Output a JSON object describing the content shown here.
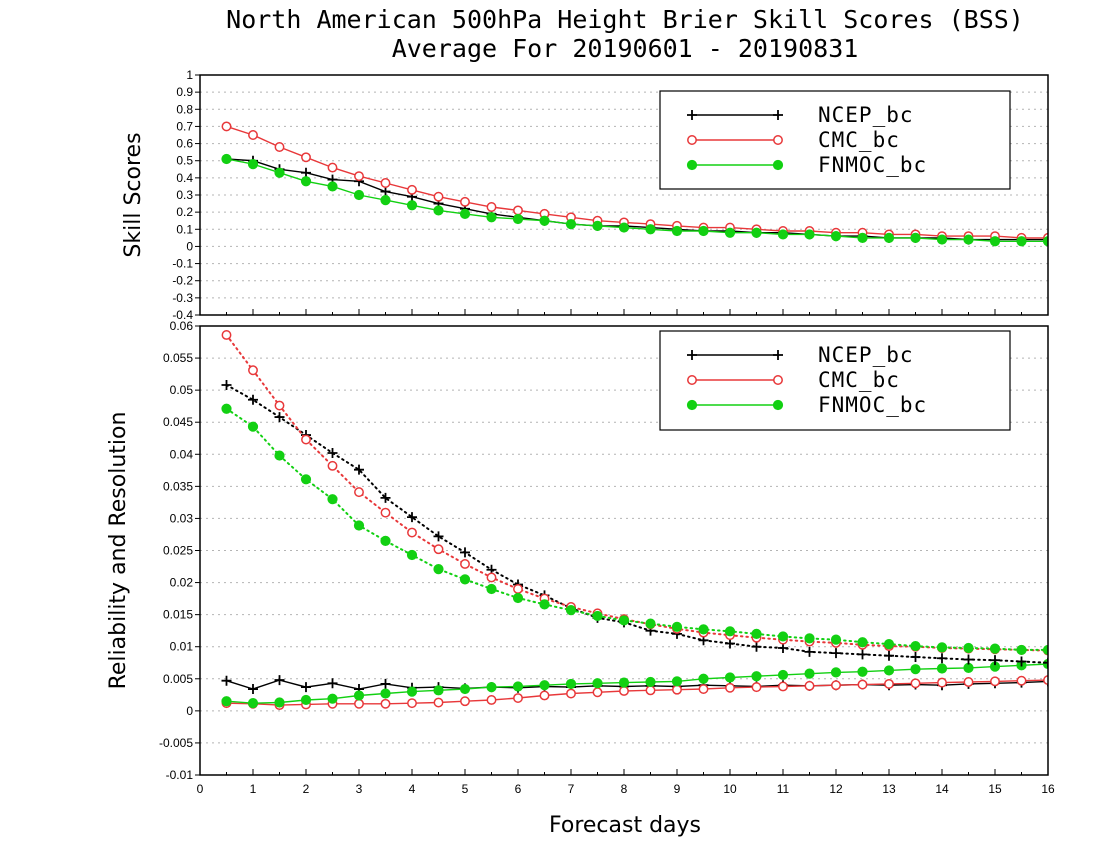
{
  "title": "North American 500hPa Height Brier Skill Scores (BSS)",
  "subtitle": "Average For 20190601 - 20190831",
  "xlabel": "Forecast days",
  "colors": {
    "NCEP_bc": "#000000",
    "CMC_bc": "#e8383a",
    "FNMOC_bc": "#12d012"
  },
  "chart_data": [
    {
      "type": "line",
      "ylabel": "Skill Scores",
      "xlim": [
        0,
        16
      ],
      "ylim": [
        -0.4,
        1
      ],
      "xticks": [
        "0",
        "1",
        "2",
        "3",
        "4",
        "5",
        "6",
        "7",
        "8",
        "9",
        "10",
        "11",
        "12",
        "13",
        "14",
        "15",
        "16"
      ],
      "yticks": [
        "-0.4",
        "-0.3",
        "-0.2",
        "-0.1",
        "0",
        "0.1",
        "0.2",
        "0.3",
        "0.4",
        "0.5",
        "0.6",
        "0.7",
        "0.8",
        "0.9",
        "1"
      ],
      "legend": {
        "position": "top-right",
        "entries": [
          "NCEP_bc",
          "CMC_bc",
          "FNMOC_bc"
        ]
      },
      "x": [
        0.5,
        1,
        1.5,
        2,
        2.5,
        3,
        3.5,
        4,
        4.5,
        5,
        5.5,
        6,
        6.5,
        7,
        7.5,
        8,
        8.5,
        9,
        9.5,
        10,
        10.5,
        11,
        11.5,
        12,
        12.5,
        13,
        13.5,
        14,
        14.5,
        15,
        15.5,
        16
      ],
      "series": [
        {
          "name": "NCEP_bc",
          "marker": "plus",
          "style": "solid",
          "values": [
            0.51,
            0.5,
            0.45,
            0.43,
            0.39,
            0.38,
            0.32,
            0.29,
            0.25,
            0.22,
            0.19,
            0.17,
            0.15,
            0.13,
            0.12,
            0.12,
            0.11,
            0.1,
            0.09,
            0.09,
            0.08,
            0.08,
            0.07,
            0.06,
            0.06,
            0.05,
            0.05,
            0.05,
            0.04,
            0.04,
            0.04,
            0.04
          ]
        },
        {
          "name": "CMC_bc",
          "marker": "open-circle",
          "style": "solid",
          "values": [
            0.7,
            0.65,
            0.58,
            0.52,
            0.46,
            0.41,
            0.37,
            0.33,
            0.29,
            0.26,
            0.23,
            0.21,
            0.19,
            0.17,
            0.15,
            0.14,
            0.13,
            0.12,
            0.11,
            0.11,
            0.1,
            0.09,
            0.09,
            0.08,
            0.08,
            0.07,
            0.07,
            0.06,
            0.06,
            0.06,
            0.05,
            0.05
          ]
        },
        {
          "name": "FNMOC_bc",
          "marker": "filled-circle",
          "style": "solid",
          "values": [
            0.51,
            0.48,
            0.43,
            0.38,
            0.35,
            0.3,
            0.27,
            0.24,
            0.21,
            0.19,
            0.17,
            0.16,
            0.15,
            0.13,
            0.12,
            0.11,
            0.1,
            0.09,
            0.09,
            0.08,
            0.08,
            0.07,
            0.07,
            0.06,
            0.05,
            0.05,
            0.05,
            0.04,
            0.04,
            0.03,
            0.03,
            0.03
          ]
        }
      ]
    },
    {
      "type": "line",
      "ylabel": "Reliability and Resolution",
      "xlim": [
        0,
        16
      ],
      "ylim": [
        -0.01,
        0.06
      ],
      "xticks": [
        "0",
        "1",
        "2",
        "3",
        "4",
        "5",
        "6",
        "7",
        "8",
        "9",
        "10",
        "11",
        "12",
        "13",
        "14",
        "15",
        "16"
      ],
      "yticks": [
        "-0.01",
        "-0.005",
        "0",
        "0.005",
        "0.01",
        "0.015",
        "0.02",
        "0.025",
        "0.03",
        "0.035",
        "0.04",
        "0.045",
        "0.05",
        "0.055",
        "0.06"
      ],
      "legend": {
        "position": "top-right",
        "entries": [
          "NCEP_bc",
          "CMC_bc",
          "FNMOC_bc"
        ]
      },
      "x": [
        0.5,
        1,
        1.5,
        2,
        2.5,
        3,
        3.5,
        4,
        4.5,
        5,
        5.5,
        6,
        6.5,
        7,
        7.5,
        8,
        8.5,
        9,
        9.5,
        10,
        10.5,
        11,
        11.5,
        12,
        12.5,
        13,
        13.5,
        14,
        14.5,
        15,
        15.5,
        16
      ],
      "series": [
        {
          "name": "NCEP_bc",
          "marker": "plus",
          "style": "solid",
          "values": [
            0.0047,
            0.0034,
            0.0048,
            0.0037,
            0.0043,
            0.0034,
            0.0042,
            0.0036,
            0.0037,
            0.0035,
            0.0037,
            0.0036,
            0.0038,
            0.0037,
            0.0039,
            0.0038,
            0.0039,
            0.0038,
            0.004,
            0.0039,
            0.0038,
            0.004,
            0.0039,
            0.004,
            0.0041,
            0.004,
            0.0041,
            0.004,
            0.0042,
            0.0043,
            0.0044,
            0.0046
          ]
        },
        {
          "name": "CMC_bc",
          "marker": "open-circle",
          "style": "solid",
          "values": [
            0.0012,
            0.0011,
            0.0009,
            0.001,
            0.0011,
            0.0011,
            0.0011,
            0.0012,
            0.0013,
            0.0015,
            0.0017,
            0.002,
            0.0024,
            0.0027,
            0.0029,
            0.0031,
            0.0032,
            0.0033,
            0.0034,
            0.0036,
            0.0037,
            0.0038,
            0.0039,
            0.004,
            0.0041,
            0.0042,
            0.0043,
            0.0044,
            0.0045,
            0.0046,
            0.0047,
            0.0048
          ]
        },
        {
          "name": "FNMOC_bc",
          "marker": "filled-circle",
          "style": "solid",
          "values": [
            0.0015,
            0.0012,
            0.0013,
            0.0017,
            0.0019,
            0.0024,
            0.0027,
            0.003,
            0.0032,
            0.0034,
            0.0037,
            0.0038,
            0.004,
            0.0042,
            0.0043,
            0.0044,
            0.0045,
            0.0046,
            0.005,
            0.0052,
            0.0054,
            0.0056,
            0.0058,
            0.006,
            0.0061,
            0.0063,
            0.0065,
            0.0066,
            0.0067,
            0.0069,
            0.0071,
            0.0073
          ]
        },
        {
          "name": "NCEP_bc",
          "marker": "plus",
          "style": "dotted",
          "values": [
            0.0508,
            0.0485,
            0.0458,
            0.043,
            0.0402,
            0.0376,
            0.0332,
            0.0302,
            0.0272,
            0.0247,
            0.022,
            0.0197,
            0.018,
            0.016,
            0.0145,
            0.0138,
            0.0125,
            0.012,
            0.011,
            0.0105,
            0.01,
            0.0098,
            0.0092,
            0.009,
            0.0088,
            0.0086,
            0.0084,
            0.0082,
            0.008,
            0.0079,
            0.0077,
            0.0075
          ]
        },
        {
          "name": "CMC_bc",
          "marker": "open-circle",
          "style": "dotted",
          "values": [
            0.0586,
            0.0531,
            0.0476,
            0.0423,
            0.0382,
            0.0341,
            0.0309,
            0.0278,
            0.0252,
            0.0229,
            0.0208,
            0.019,
            0.0175,
            0.0162,
            0.0152,
            0.0143,
            0.0135,
            0.0128,
            0.0122,
            0.0118,
            0.0114,
            0.0111,
            0.0108,
            0.0106,
            0.0103,
            0.0101,
            0.01,
            0.0098,
            0.0097,
            0.0096,
            0.0095,
            0.0094
          ]
        },
        {
          "name": "FNMOC_bc",
          "marker": "filled-circle",
          "style": "dotted",
          "values": [
            0.0471,
            0.0443,
            0.0398,
            0.0361,
            0.033,
            0.0289,
            0.0265,
            0.0243,
            0.0221,
            0.0205,
            0.019,
            0.0176,
            0.0166,
            0.0157,
            0.0148,
            0.0141,
            0.0136,
            0.0131,
            0.0127,
            0.0124,
            0.012,
            0.0116,
            0.0113,
            0.0111,
            0.0107,
            0.0104,
            0.0101,
            0.0099,
            0.0098,
            0.0097,
            0.0095,
            0.0095
          ]
        }
      ]
    }
  ]
}
